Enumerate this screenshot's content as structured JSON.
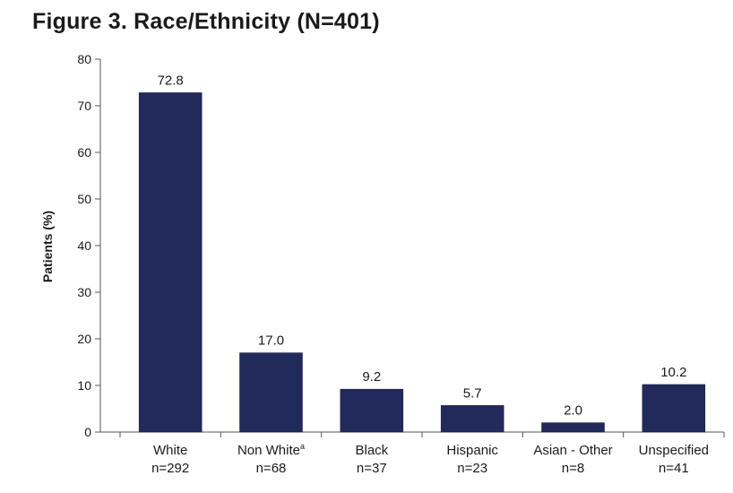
{
  "figure": {
    "title": "Figure 3. Race/Ethnicity (N=401)"
  },
  "chart_data": {
    "type": "bar",
    "title": "Figure 3. Race/Ethnicity (N=401)",
    "ylabel": "Patients (%)",
    "xlabel": "",
    "ylim": [
      0,
      80
    ],
    "yticks": [
      0,
      10,
      20,
      30,
      40,
      50,
      60,
      70,
      80
    ],
    "categories": [
      {
        "label": "White",
        "superscript": "",
        "n": "n=292"
      },
      {
        "label": "Non White",
        "superscript": "a",
        "n": "n=68"
      },
      {
        "label": "Black",
        "superscript": "",
        "n": "n=37"
      },
      {
        "label": "Hispanic",
        "superscript": "",
        "n": "n=23"
      },
      {
        "label": "Asian - Other",
        "superscript": "",
        "n": "n=8"
      },
      {
        "label": "Unspecified",
        "superscript": "",
        "n": "n=41"
      }
    ],
    "values": [
      72.8,
      17.0,
      9.2,
      5.7,
      2.0,
      10.2
    ],
    "data_labels": [
      "72.8",
      "17.0",
      "9.2",
      "5.7",
      "2.0",
      "10.2"
    ],
    "bar_color": "#222a5c",
    "grid": false,
    "legend": "none"
  }
}
